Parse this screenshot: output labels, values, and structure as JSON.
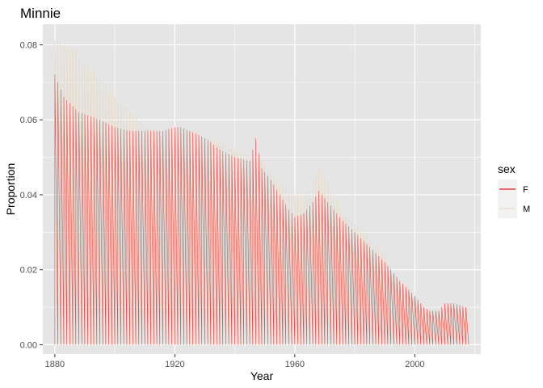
{
  "chart_data": {
    "type": "line",
    "title": "Minnie",
    "xlabel": "Year",
    "ylabel": "Proportion",
    "xlim": [
      1876,
      2022
    ],
    "ylim": [
      -0.0025,
      0.0855
    ],
    "x_ticks": [
      1880,
      1920,
      1960,
      2000
    ],
    "x_tick_labels": [
      "1880",
      "1920",
      "1960",
      "2000"
    ],
    "y_ticks": [
      0.0,
      0.02,
      0.04,
      0.06,
      0.08
    ],
    "y_tick_labels": [
      "0.00",
      "0.02",
      "0.04",
      "0.06",
      "0.08"
    ],
    "grid": true,
    "legend": {
      "title": "sex",
      "placement": "right",
      "entries": [
        {
          "label": "F",
          "color": "#e41a1c"
        },
        {
          "label": "M",
          "color": "#e8dcc4"
        }
      ]
    },
    "background": "#e5e5e5",
    "gridline_color": "#ffffff",
    "year_range": [
      1880,
      2017
    ],
    "series": [
      {
        "name": "F",
        "color": "#e41a1c",
        "peak_envelope": {
          "x": [
            1880,
            1883,
            1888,
            1895,
            1900,
            1905,
            1910,
            1913,
            1916,
            1920,
            1922,
            1925,
            1928,
            1932,
            1935,
            1940,
            1945,
            1947,
            1949,
            1952,
            1955,
            1958,
            1960,
            1963,
            1966,
            1968,
            1970,
            1973,
            1976,
            1980,
            1985,
            1990,
            1995,
            2000,
            2003,
            2005,
            2008,
            2010,
            2013,
            2017
          ],
          "y": [
            0.072,
            0.066,
            0.062,
            0.06,
            0.058,
            0.057,
            0.057,
            0.057,
            0.057,
            0.058,
            0.058,
            0.057,
            0.056,
            0.054,
            0.052,
            0.05,
            0.049,
            0.055,
            0.047,
            0.044,
            0.04,
            0.036,
            0.034,
            0.035,
            0.038,
            0.041,
            0.039,
            0.036,
            0.033,
            0.03,
            0.026,
            0.022,
            0.017,
            0.013,
            0.01,
            0.009,
            0.009,
            0.011,
            0.011,
            0.01
          ]
        }
      },
      {
        "name": "M",
        "color": "#e8dcc4",
        "peak_envelope": {
          "x": [
            1880,
            1881,
            1885,
            1890,
            1895,
            1900,
            1905,
            1910,
            1915,
            1918,
            1920,
            1925,
            1930,
            1935,
            1940,
            1945,
            1948,
            1950,
            1955,
            1958,
            1960,
            1963,
            1965,
            1967,
            1968,
            1970,
            1973,
            1976,
            1980,
            1985,
            1988,
            1990,
            1995,
            2000,
            2003,
            2005,
            2008,
            2010,
            2013,
            2017
          ],
          "y": [
            0.081,
            0.081,
            0.079,
            0.075,
            0.071,
            0.066,
            0.062,
            0.058,
            0.057,
            0.057,
            0.058,
            0.057,
            0.055,
            0.054,
            0.052,
            0.05,
            0.049,
            0.048,
            0.043,
            0.041,
            0.04,
            0.04,
            0.041,
            0.046,
            0.047,
            0.045,
            0.04,
            0.035,
            0.032,
            0.028,
            0.026,
            0.023,
            0.017,
            0.013,
            0.01,
            0.009,
            0.009,
            0.011,
            0.011,
            0.01
          ]
        }
      }
    ]
  }
}
